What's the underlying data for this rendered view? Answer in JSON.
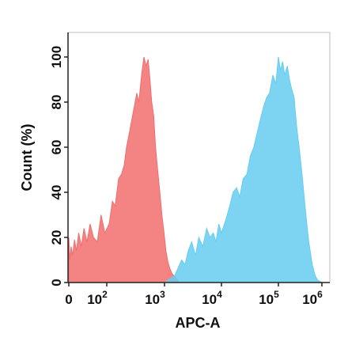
{
  "chart_data": {
    "type": "area",
    "title": "",
    "xlabel": "APC-A",
    "ylabel": "Count  (%)",
    "x_scale": "biexponential",
    "xlim": [
      0,
      1000000
    ],
    "ylim": [
      0,
      100
    ],
    "grid": false,
    "legend": "none",
    "x_ticks": [
      {
        "value": 0,
        "base": "0",
        "exp": ""
      },
      {
        "value": 100,
        "base": "10",
        "exp": "2"
      },
      {
        "value": 1000,
        "base": "10",
        "exp": "3"
      },
      {
        "value": 10000,
        "base": "10",
        "exp": "4"
      },
      {
        "value": 100000,
        "base": "10",
        "exp": "5"
      },
      {
        "value": 1000000,
        "base": "10",
        "exp": "6"
      }
    ],
    "y_ticks": [
      "0",
      "20",
      "40",
      "60",
      "80",
      "100"
    ],
    "series": [
      {
        "color": "#f26d6d",
        "x": [
          0,
          3,
          6,
          10,
          15,
          20,
          26,
          33,
          40,
          48,
          56,
          65,
          75,
          85,
          95,
          110,
          125,
          140,
          160,
          180,
          200,
          220,
          245,
          270,
          300,
          330,
          360,
          400,
          440,
          480,
          520,
          560,
          600,
          650,
          700,
          760,
          830,
          900,
          980,
          1060,
          1150,
          1250,
          1350,
          1460,
          1580,
          1700,
          1850,
          2000
        ],
        "y": [
          20,
          10,
          16,
          12,
          19,
          14,
          22,
          16,
          24,
          18,
          26,
          20,
          18,
          30,
          22,
          26,
          36,
          34,
          46,
          48,
          52,
          60,
          66,
          72,
          78,
          84,
          80,
          92,
          100,
          96,
          99,
          90,
          80,
          74,
          60,
          50,
          40,
          30,
          22,
          14,
          9,
          6,
          4,
          3,
          2,
          1,
          0,
          0
        ]
      },
      {
        "color": "#66cdf0",
        "x": [
          1000,
          1150,
          1300,
          1500,
          1700,
          2000,
          2300,
          2600,
          3000,
          3500,
          4000,
          4700,
          5500,
          6300,
          7200,
          8000,
          9000,
          10000,
          12000,
          14000,
          16000,
          18500,
          21000,
          24000,
          28000,
          32000,
          37000,
          42000,
          48000,
          55000,
          62000,
          70000,
          80000,
          90000,
          100000,
          112000,
          125000,
          140000,
          160000,
          180000,
          200000,
          230000,
          260000,
          300000,
          350000,
          400000,
          450000,
          500000,
          600000,
          700000,
          800000,
          1000000
        ],
        "y": [
          0,
          1,
          2,
          3,
          6,
          10,
          8,
          14,
          18,
          12,
          20,
          16,
          24,
          20,
          22,
          18,
          26,
          22,
          28,
          34,
          40,
          42,
          38,
          46,
          48,
          56,
          60,
          66,
          72,
          78,
          82,
          84,
          92,
          88,
          100,
          94,
          98,
          92,
          96,
          90,
          86,
          82,
          70,
          60,
          48,
          36,
          26,
          18,
          8,
          3,
          1,
          0
        ]
      }
    ]
  }
}
